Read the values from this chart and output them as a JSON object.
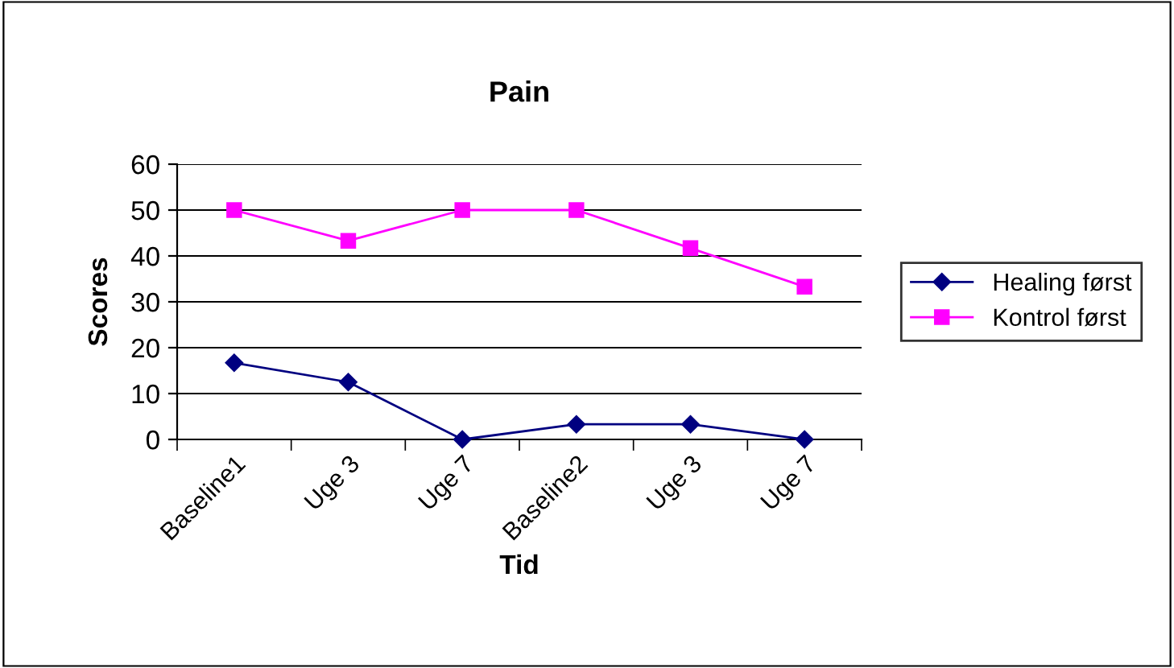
{
  "chart_data": {
    "type": "line",
    "title": "Pain",
    "xlabel": "Tid",
    "ylabel": "Scores",
    "categories": [
      "Baseline1",
      "Uge 3",
      "Uge 7",
      "Baseline2",
      "Uge 3",
      "Uge 7"
    ],
    "series": [
      {
        "name": "Healing først",
        "color": "#000080",
        "marker": "diamond",
        "values": [
          16.7,
          12.5,
          0,
          3.3,
          3.3,
          0
        ]
      },
      {
        "name": "Kontrol først",
        "color": "#ff00ff",
        "marker": "square",
        "values": [
          50,
          43.3,
          50,
          50,
          41.7,
          33.3
        ]
      }
    ],
    "ylim": [
      0,
      60
    ],
    "yticks": [
      0,
      10,
      20,
      30,
      40,
      50,
      60
    ],
    "grid": "y",
    "legend": "right"
  }
}
